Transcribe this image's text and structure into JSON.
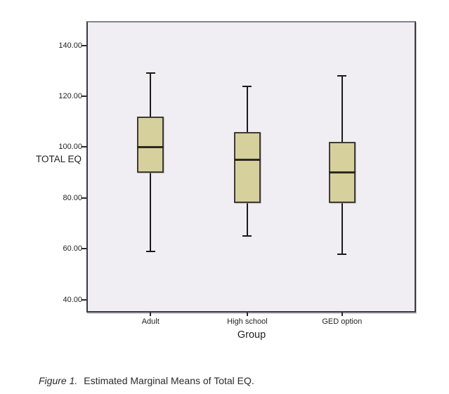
{
  "figure": {
    "caption_label": "Figure 1.",
    "caption_text": "Estimated Marginal Means of Total EQ."
  },
  "chart_data": {
    "type": "boxplot",
    "title": "",
    "xlabel": "Group",
    "ylabel": "TOTAL EQ",
    "categories": [
      "Adult",
      "High school",
      "GED option"
    ],
    "series": [
      {
        "name": "Adult",
        "whisker_low": 59,
        "q1": 90,
        "median": 100,
        "q3": 112,
        "whisker_high": 129
      },
      {
        "name": "High school",
        "whisker_low": 65,
        "q1": 78,
        "median": 95,
        "q3": 106,
        "whisker_high": 124
      },
      {
        "name": "GED option",
        "whisker_low": 58,
        "q1": 78,
        "median": 90,
        "q3": 102,
        "whisker_high": 128
      }
    ],
    "y_ticks": [
      140,
      120,
      100,
      80,
      60,
      40
    ],
    "y_tick_labels": [
      "140.00",
      "120.00",
      "100.00",
      "80.00",
      "60.00",
      "40.00"
    ],
    "ylim": [
      35.5,
      149
    ],
    "grid": false,
    "legend": "none",
    "colors": {
      "box_fill": "#d6d09c",
      "box_border": "#3e3c34",
      "median_line": "#2b2920",
      "whisker": "#1a1a1a",
      "plot_background": "#f0eef2",
      "frame_border": "#3a3840",
      "page_background": "#ffffff",
      "text": "#1f1f1f"
    }
  }
}
